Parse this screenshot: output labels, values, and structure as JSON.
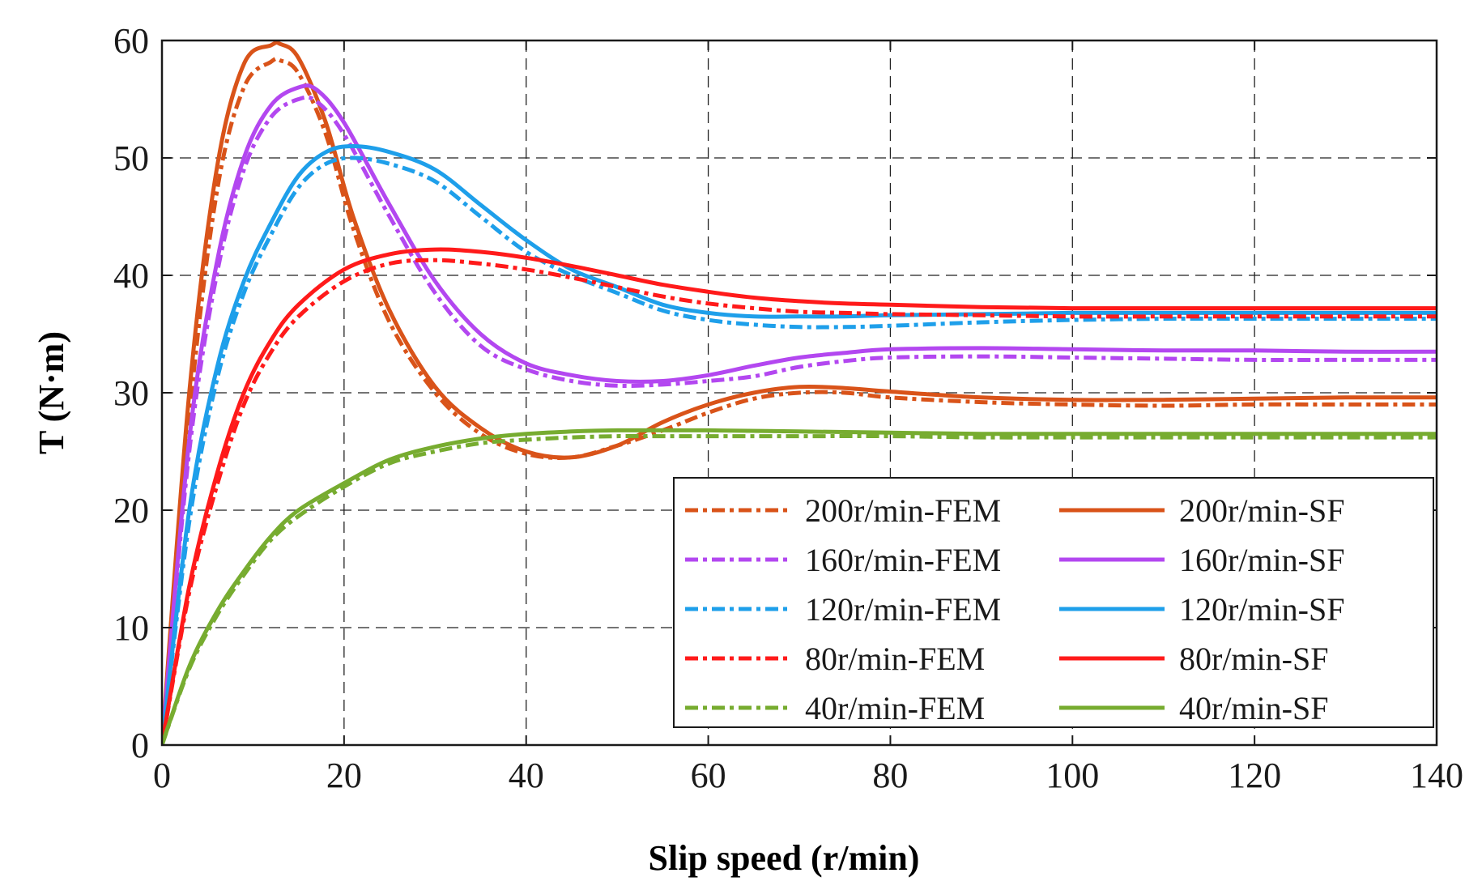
{
  "chart_data": {
    "type": "line",
    "title": "",
    "xlabel": "Slip speed (r/min)",
    "ylabel": "T (N·m)",
    "xlim": [
      0,
      140
    ],
    "ylim": [
      0,
      60
    ],
    "xticks": [
      0,
      20,
      40,
      60,
      80,
      100,
      120,
      140
    ],
    "yticks": [
      0,
      10,
      20,
      30,
      40,
      50,
      60
    ],
    "xtick_labels": [
      "0",
      "20",
      "40",
      "60",
      "80",
      "100",
      "120",
      "140"
    ],
    "ytick_labels": [
      "0",
      "10",
      "20",
      "30",
      "40",
      "50",
      "60"
    ],
    "grid": true,
    "legend_position": "bottom-right",
    "series": [
      {
        "name": "200r/min-FEM",
        "color": "#D95319",
        "style": "dashdot",
        "x": [
          0,
          3,
          6,
          9,
          12,
          13,
          15,
          18,
          21,
          25,
          30,
          35,
          40,
          45,
          50,
          55,
          60,
          65,
          70,
          75,
          80,
          90,
          100,
          110,
          120,
          130,
          140
        ],
        "y": [
          0,
          28,
          47,
          56,
          58.2,
          58.3,
          57.2,
          52,
          44,
          36,
          30,
          26.5,
          24.8,
          24.5,
          25.5,
          26.8,
          28.3,
          29.5,
          30,
          30,
          29.6,
          29.2,
          29,
          28.9,
          29,
          29,
          29
        ]
      },
      {
        "name": "200r/min-SF",
        "color": "#D95319",
        "style": "solid",
        "x": [
          0,
          3,
          6,
          9,
          12,
          13,
          15,
          18,
          21,
          25,
          30,
          35,
          40,
          45,
          50,
          55,
          60,
          65,
          70,
          75,
          80,
          90,
          100,
          110,
          120,
          130,
          140
        ],
        "y": [
          0,
          30,
          49,
          58,
          59.6,
          59.7,
          58.5,
          53,
          45,
          37,
          30.5,
          27,
          25,
          24.5,
          25.5,
          27.5,
          29,
          30,
          30.5,
          30.4,
          30.1,
          29.6,
          29.4,
          29.4,
          29.5,
          29.6,
          29.6
        ]
      },
      {
        "name": "160r/min-FEM",
        "color": "#B347F0",
        "style": "dashdot",
        "x": [
          0,
          3,
          6,
          9,
          12,
          15,
          17,
          20,
          25,
          30,
          35,
          40,
          45,
          50,
          55,
          60,
          65,
          70,
          75,
          80,
          90,
          100,
          110,
          120,
          130,
          140
        ],
        "y": [
          0,
          25,
          40,
          49,
          53.5,
          55,
          54.8,
          52,
          45,
          38.5,
          34,
          32,
          31,
          30.6,
          30.7,
          31,
          31.4,
          32.2,
          32.7,
          33,
          33.1,
          33,
          32.9,
          32.8,
          32.8,
          32.8
        ]
      },
      {
        "name": "160r/min-SF",
        "color": "#B347F0",
        "style": "solid",
        "x": [
          0,
          3,
          6,
          9,
          12,
          15,
          17,
          20,
          25,
          30,
          35,
          40,
          45,
          50,
          55,
          60,
          65,
          70,
          75,
          80,
          90,
          100,
          110,
          120,
          130,
          140
        ],
        "y": [
          0,
          26,
          41,
          50,
          54.5,
          56,
          55.8,
          53,
          46,
          39.5,
          35,
          32.5,
          31.5,
          31,
          31,
          31.5,
          32.3,
          33,
          33.4,
          33.7,
          33.8,
          33.7,
          33.6,
          33.6,
          33.5,
          33.5
        ]
      },
      {
        "name": "120r/min-FEM",
        "color": "#1E9FEA",
        "style": "dashdot",
        "x": [
          0,
          3,
          6,
          9,
          12,
          15,
          18,
          21,
          25,
          30,
          35,
          40,
          45,
          50,
          55,
          60,
          65,
          70,
          75,
          80,
          90,
          100,
          110,
          120,
          130,
          140
        ],
        "y": [
          0,
          19,
          31,
          38.5,
          43.5,
          47.5,
          49.5,
          50,
          49.5,
          48,
          45,
          42,
          40,
          38.5,
          37,
          36.2,
          35.8,
          35.6,
          35.6,
          35.7,
          36,
          36.2,
          36.3,
          36.3,
          36.3,
          36.3
        ]
      },
      {
        "name": "120r/min-SF",
        "color": "#1E9FEA",
        "style": "solid",
        "x": [
          0,
          3,
          6,
          9,
          12,
          15,
          18,
          21,
          25,
          30,
          35,
          40,
          45,
          50,
          55,
          60,
          65,
          70,
          75,
          80,
          90,
          100,
          110,
          120,
          130,
          140
        ],
        "y": [
          0,
          20,
          32,
          39.5,
          44.5,
          48.5,
          50.5,
          51,
          50.5,
          49,
          46,
          43,
          40.5,
          39,
          37.5,
          36.8,
          36.5,
          36.5,
          36.5,
          36.6,
          36.7,
          36.8,
          36.8,
          36.8,
          36.8,
          36.8
        ]
      },
      {
        "name": "80r/min-FEM",
        "color": "#FF1A1A",
        "style": "dashdot",
        "x": [
          0,
          3,
          6,
          9,
          12,
          15,
          20,
          25,
          30,
          35,
          40,
          45,
          50,
          55,
          60,
          65,
          70,
          75,
          80,
          90,
          100,
          110,
          120,
          130,
          140
        ],
        "y": [
          0,
          13,
          22,
          29,
          33.5,
          36.5,
          39.5,
          41,
          41.3,
          41,
          40.5,
          39.8,
          39,
          38.2,
          37.6,
          37.2,
          36.9,
          36.8,
          36.7,
          36.6,
          36.5,
          36.5,
          36.5,
          36.5,
          36.5
        ]
      },
      {
        "name": "80r/min-SF",
        "color": "#FF1A1A",
        "style": "solid",
        "x": [
          0,
          3,
          6,
          9,
          12,
          15,
          20,
          25,
          30,
          35,
          40,
          45,
          50,
          55,
          60,
          65,
          70,
          75,
          80,
          90,
          100,
          110,
          120,
          130,
          140
        ],
        "y": [
          0,
          13.5,
          23,
          30,
          34.5,
          37.5,
          40.5,
          41.8,
          42.2,
          42,
          41.5,
          40.8,
          40,
          39.2,
          38.6,
          38.1,
          37.8,
          37.6,
          37.5,
          37.3,
          37.2,
          37.2,
          37.2,
          37.2,
          37.2
        ]
      },
      {
        "name": "40r/min-FEM",
        "color": "#77AC30",
        "style": "dashdot",
        "x": [
          0,
          3,
          6,
          9,
          12,
          15,
          20,
          25,
          30,
          35,
          40,
          45,
          50,
          55,
          60,
          70,
          80,
          90,
          100,
          110,
          120,
          130,
          140
        ],
        "y": [
          0,
          6.5,
          11,
          14.5,
          17.5,
          19.5,
          22,
          24,
          25,
          25.7,
          26,
          26.2,
          26.3,
          26.3,
          26.3,
          26.3,
          26.3,
          26.2,
          26.2,
          26.2,
          26.2,
          26.2,
          26.2
        ]
      },
      {
        "name": "40r/min-SF",
        "color": "#77AC30",
        "style": "solid",
        "x": [
          0,
          3,
          6,
          9,
          12,
          15,
          20,
          25,
          30,
          35,
          40,
          45,
          50,
          55,
          60,
          70,
          80,
          90,
          100,
          110,
          120,
          130,
          140
        ],
        "y": [
          0,
          6.7,
          11.3,
          14.8,
          17.8,
          20,
          22.3,
          24.3,
          25.4,
          26.1,
          26.5,
          26.7,
          26.8,
          26.8,
          26.8,
          26.7,
          26.6,
          26.5,
          26.5,
          26.5,
          26.5,
          26.5,
          26.5
        ]
      }
    ]
  }
}
